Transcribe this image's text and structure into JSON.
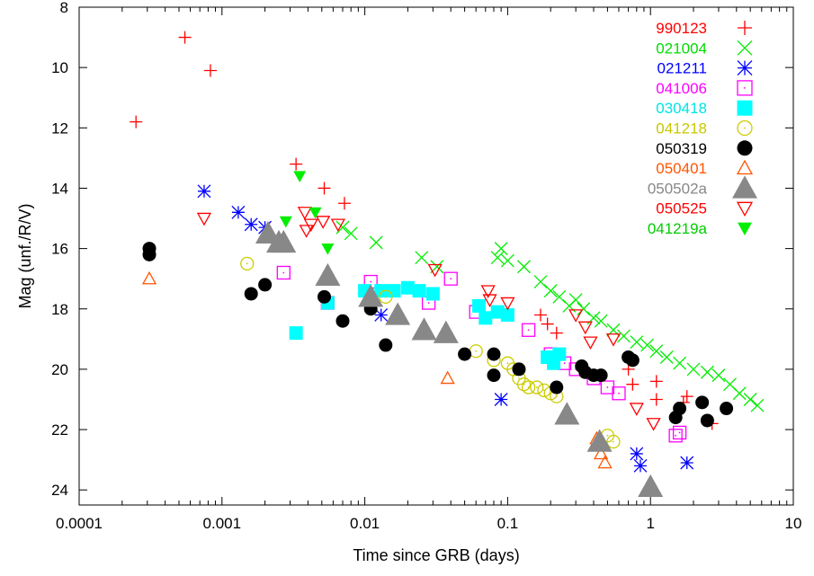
{
  "chart_data": {
    "type": "scatter",
    "title": "",
    "xlabel": "Time since GRB (days)",
    "ylabel": "Mag (unf./R/V)",
    "x_scale": "log",
    "xlim": [
      0.0001,
      10
    ],
    "ylim": [
      24.5,
      8
    ],
    "y_inverted": true,
    "x_ticks": [
      {
        "value": 0.0001,
        "label": "0.0001"
      },
      {
        "value": 0.001,
        "label": "0.001"
      },
      {
        "value": 0.01,
        "label": "0.01"
      },
      {
        "value": 0.1,
        "label": "0.1"
      },
      {
        "value": 1,
        "label": "1"
      },
      {
        "value": 10,
        "label": "10"
      }
    ],
    "y_ticks": [
      {
        "value": 8,
        "label": "8"
      },
      {
        "value": 10,
        "label": "10"
      },
      {
        "value": 12,
        "label": "12"
      },
      {
        "value": 14,
        "label": "14"
      },
      {
        "value": 16,
        "label": "16"
      },
      {
        "value": 18,
        "label": "18"
      },
      {
        "value": 20,
        "label": "20"
      },
      {
        "value": 22,
        "label": "22"
      },
      {
        "value": 24,
        "label": "24"
      }
    ],
    "grid": false,
    "legend_position": "top-right",
    "series": [
      {
        "name": "990123",
        "color": "#ff0000",
        "marker": "plus",
        "points": [
          [
            0.00025,
            11.8
          ],
          [
            0.00055,
            9.0
          ],
          [
            0.00083,
            10.1
          ],
          [
            0.0033,
            13.2
          ],
          [
            0.0052,
            14.0
          ],
          [
            0.0072,
            14.5
          ],
          [
            0.17,
            18.2
          ],
          [
            0.19,
            18.5
          ],
          [
            0.22,
            18.8
          ],
          [
            0.7,
            20.0
          ],
          [
            0.75,
            20.5
          ],
          [
            1.1,
            20.4
          ],
          [
            1.1,
            21.0
          ],
          [
            1.7,
            21.1
          ],
          [
            1.8,
            20.9
          ],
          [
            2.7,
            21.8
          ]
        ]
      },
      {
        "name": "021004",
        "color": "#00ee00",
        "marker": "cross",
        "points": [
          [
            0.007,
            15.3
          ],
          [
            0.008,
            15.5
          ],
          [
            0.012,
            15.8
          ],
          [
            0.025,
            16.3
          ],
          [
            0.032,
            16.6
          ],
          [
            0.085,
            16.3
          ],
          [
            0.09,
            16.0
          ],
          [
            0.1,
            16.4
          ],
          [
            0.13,
            16.6
          ],
          [
            0.17,
            17.1
          ],
          [
            0.2,
            17.4
          ],
          [
            0.23,
            17.6
          ],
          [
            0.27,
            17.9
          ],
          [
            0.3,
            17.7
          ],
          [
            0.34,
            18.0
          ],
          [
            0.4,
            18.3
          ],
          [
            0.45,
            18.4
          ],
          [
            0.55,
            18.7
          ],
          [
            0.65,
            18.9
          ],
          [
            0.8,
            19.1
          ],
          [
            0.95,
            19.2
          ],
          [
            1.1,
            19.4
          ],
          [
            1.3,
            19.6
          ],
          [
            1.6,
            19.8
          ],
          [
            2.0,
            20.0
          ],
          [
            2.5,
            20.1
          ],
          [
            3.0,
            20.2
          ],
          [
            3.6,
            20.5
          ],
          [
            4.2,
            20.8
          ],
          [
            5.0,
            21.0
          ],
          [
            5.6,
            21.2
          ]
        ]
      },
      {
        "name": "021211",
        "color": "#0000ff",
        "marker": "asterisk",
        "points": [
          [
            0.00075,
            14.1
          ],
          [
            0.0013,
            14.8
          ],
          [
            0.0016,
            15.2
          ],
          [
            0.002,
            15.3
          ],
          [
            0.013,
            18.2
          ],
          [
            0.09,
            21.0
          ],
          [
            0.8,
            22.8
          ],
          [
            0.85,
            23.2
          ],
          [
            1.8,
            23.1
          ]
        ]
      },
      {
        "name": "041006",
        "color": "#ff00ff",
        "marker": "square-open",
        "points": [
          [
            0.0027,
            16.8
          ],
          [
            0.0055,
            17.8
          ],
          [
            0.011,
            17.1
          ],
          [
            0.028,
            17.8
          ],
          [
            0.04,
            17.0
          ],
          [
            0.06,
            18.1
          ],
          [
            0.14,
            18.7
          ],
          [
            0.2,
            19.5
          ],
          [
            0.25,
            19.8
          ],
          [
            0.3,
            20.0
          ],
          [
            0.4,
            20.3
          ],
          [
            0.5,
            20.6
          ],
          [
            0.6,
            20.8
          ],
          [
            1.5,
            22.2
          ],
          [
            1.6,
            22.1
          ]
        ]
      },
      {
        "name": "030418",
        "color": "#00ffff",
        "marker": "square-filled",
        "points": [
          [
            0.0033,
            18.8
          ],
          [
            0.0055,
            17.8
          ],
          [
            0.01,
            17.4
          ],
          [
            0.013,
            17.4
          ],
          [
            0.016,
            17.4
          ],
          [
            0.02,
            17.3
          ],
          [
            0.024,
            17.4
          ],
          [
            0.03,
            17.5
          ],
          [
            0.063,
            17.9
          ],
          [
            0.07,
            18.3
          ],
          [
            0.085,
            18.1
          ],
          [
            0.1,
            18.2
          ],
          [
            0.19,
            19.6
          ],
          [
            0.21,
            19.8
          ],
          [
            0.23,
            19.5
          ]
        ]
      },
      {
        "name": "041218",
        "color": "#cccc00",
        "marker": "circle-open",
        "points": [
          [
            0.0015,
            16.5
          ],
          [
            0.014,
            17.6
          ],
          [
            0.06,
            19.4
          ],
          [
            0.08,
            19.7
          ],
          [
            0.1,
            19.8
          ],
          [
            0.11,
            20.0
          ],
          [
            0.12,
            20.3
          ],
          [
            0.13,
            20.5
          ],
          [
            0.14,
            20.6
          ],
          [
            0.16,
            20.6
          ],
          [
            0.18,
            20.7
          ],
          [
            0.2,
            20.8
          ],
          [
            0.22,
            20.9
          ],
          [
            0.5,
            22.2
          ],
          [
            0.55,
            22.4
          ]
        ]
      },
      {
        "name": "050319",
        "color": "#000000",
        "marker": "circle-filled",
        "points": [
          [
            0.00031,
            16.0
          ],
          [
            0.00031,
            16.2
          ],
          [
            0.0016,
            17.5
          ],
          [
            0.002,
            17.2
          ],
          [
            0.0052,
            17.6
          ],
          [
            0.007,
            18.4
          ],
          [
            0.011,
            18.0
          ],
          [
            0.014,
            19.2
          ],
          [
            0.05,
            19.5
          ],
          [
            0.08,
            19.5
          ],
          [
            0.08,
            20.2
          ],
          [
            0.12,
            20.0
          ],
          [
            0.22,
            20.6
          ],
          [
            0.33,
            19.9
          ],
          [
            0.35,
            20.1
          ],
          [
            0.4,
            20.2
          ],
          [
            0.45,
            20.2
          ],
          [
            0.7,
            19.6
          ],
          [
            0.75,
            19.7
          ],
          [
            1.5,
            21.6
          ],
          [
            1.6,
            21.3
          ],
          [
            2.3,
            21.1
          ],
          [
            2.5,
            21.7
          ],
          [
            3.4,
            21.3
          ]
        ]
      },
      {
        "name": "050401",
        "color": "#ff5500",
        "marker": "triangle-open",
        "points": [
          [
            0.00031,
            17.0
          ],
          [
            0.038,
            20.3
          ],
          [
            0.42,
            22.3
          ],
          [
            0.45,
            22.8
          ],
          [
            0.48,
            23.1
          ]
        ]
      },
      {
        "name": "050502a",
        "color": "#888888",
        "marker": "triangle-filled",
        "points": [
          [
            0.0021,
            15.5
          ],
          [
            0.0025,
            15.8
          ],
          [
            0.0027,
            15.8
          ],
          [
            0.0055,
            16.9
          ],
          [
            0.011,
            17.6
          ],
          [
            0.017,
            18.2
          ],
          [
            0.026,
            18.7
          ],
          [
            0.037,
            18.8
          ],
          [
            0.26,
            21.5
          ],
          [
            0.44,
            22.4
          ],
          [
            1.0,
            23.9
          ]
        ]
      },
      {
        "name": "050525",
        "color": "#ff0000",
        "marker": "triangle-down-open",
        "points": [
          [
            0.00075,
            15.0
          ],
          [
            0.0038,
            14.8
          ],
          [
            0.0039,
            15.4
          ],
          [
            0.0042,
            15.2
          ],
          [
            0.0051,
            15.1
          ],
          [
            0.0065,
            15.2
          ],
          [
            0.031,
            16.7
          ],
          [
            0.073,
            17.4
          ],
          [
            0.075,
            17.7
          ],
          [
            0.1,
            17.8
          ],
          [
            0.3,
            18.2
          ],
          [
            0.35,
            18.6
          ],
          [
            0.38,
            19.1
          ],
          [
            0.55,
            19.0
          ],
          [
            0.8,
            21.3
          ],
          [
            1.05,
            21.8
          ]
        ]
      },
      {
        "name": "041219a",
        "color": "#00ee00",
        "marker": "triangle-down-filled",
        "points": [
          [
            0.0028,
            15.1
          ],
          [
            0.0035,
            13.6
          ],
          [
            0.0045,
            14.8
          ],
          [
            0.0055,
            16.0
          ]
        ]
      }
    ]
  }
}
